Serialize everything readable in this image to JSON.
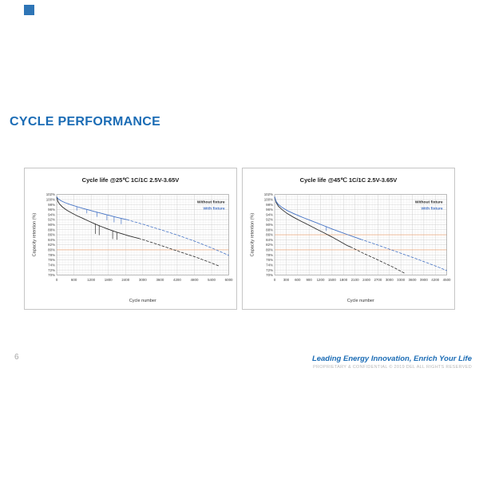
{
  "slide": {
    "title": "CYCLE PERFORMANCE",
    "page_number": "6",
    "footer_tagline": "Leading Energy Innovation, Enrich Your Life",
    "footer_legal": "PROPRIETARY & CONFIDENTIAL © 2019 DEL ALL RIGHTS RESERVED",
    "accent_color": "#1b6cb5",
    "logo_color": "#2e75b6"
  },
  "chart_data": [
    {
      "type": "line",
      "title": "Cycle life @25℃ 1C/1C 2.5V-3.65V",
      "xlabel": "Cycle number",
      "ylabel": "Capacity retention (%)",
      "xlim": [
        0,
        6000
      ],
      "ylim": [
        70,
        102
      ],
      "x_ticks": [
        0,
        600,
        1200,
        1800,
        2400,
        3000,
        3600,
        4200,
        4800,
        5400,
        6000
      ],
      "x_minor_step": 100,
      "y_tick_step": 2,
      "y_minor_step": 1,
      "y_tick_suffix": "%",
      "grid": true,
      "legend_position": "top-right",
      "reference_lines": [
        {
          "y": 80,
          "color": "#f2a26d"
        }
      ],
      "series": [
        {
          "name": "Without fixture",
          "color": "#2b2b2b",
          "solid_points": [
            [
              0,
              101
            ],
            [
              40,
              99.2
            ],
            [
              100,
              98.2
            ],
            [
              200,
              97.0
            ],
            [
              350,
              95.8
            ],
            [
              500,
              94.8
            ],
            [
              700,
              93.6
            ],
            [
              900,
              92.6
            ],
            [
              1100,
              91.5
            ],
            [
              1300,
              90.5
            ],
            [
              1500,
              89.5
            ],
            [
              1700,
              88.6
            ],
            [
              1900,
              87.8
            ],
            [
              2100,
              87.0
            ],
            [
              2300,
              86.3
            ],
            [
              2500,
              85.6
            ],
            [
              2700,
              85.0
            ],
            [
              2850,
              84.6
            ]
          ],
          "dashed_points": [
            [
              2850,
              84.6
            ],
            [
              3300,
              83.0
            ],
            [
              3800,
              81.1
            ],
            [
              4300,
              79.2
            ],
            [
              4800,
              77.3
            ],
            [
              5300,
              75.2
            ],
            [
              5650,
              73.6
            ]
          ],
          "spikes": [
            [
              1350,
              90.3,
              86.4
            ],
            [
              1480,
              89.7,
              85.9
            ],
            [
              1950,
              87.6,
              84.4
            ],
            [
              2100,
              87.0,
              84.1
            ]
          ]
        },
        {
          "name": "With fixture",
          "color": "#4472c4",
          "solid_points": [
            [
              0,
              101
            ],
            [
              60,
              100.2
            ],
            [
              150,
              99.5
            ],
            [
              300,
              98.7
            ],
            [
              500,
              97.9
            ],
            [
              700,
              97.2
            ],
            [
              900,
              96.5
            ],
            [
              1100,
              95.9
            ],
            [
              1300,
              95.3
            ],
            [
              1500,
              94.7
            ],
            [
              1700,
              94.1
            ],
            [
              1900,
              93.5
            ],
            [
              2100,
              92.9
            ],
            [
              2300,
              92.4
            ],
            [
              2450,
              92.0
            ]
          ],
          "dashed_points": [
            [
              2450,
              92.0
            ],
            [
              3000,
              90.2
            ],
            [
              3600,
              88.1
            ],
            [
              4200,
              85.9
            ],
            [
              4800,
              83.5
            ],
            [
              5400,
              80.8
            ],
            [
              6000,
              77.8
            ]
          ],
          "spikes": [
            [
              700,
              97.2,
              95.7
            ],
            [
              1050,
              96.1,
              94.6
            ],
            [
              1400,
              95.0,
              93.2
            ],
            [
              1750,
              93.9,
              91.8
            ],
            [
              2000,
              93.2,
              91.0
            ],
            [
              2250,
              92.5,
              90.3
            ]
          ]
        }
      ]
    },
    {
      "type": "line",
      "title": "Cycle life @45℃ 1C/1C 2.5V-3.65V",
      "xlabel": "Cycle number",
      "ylabel": "Capacity retention (%)",
      "xlim": [
        0,
        4500
      ],
      "ylim": [
        70,
        102
      ],
      "x_ticks": [
        0,
        300,
        600,
        900,
        1200,
        1500,
        1800,
        2100,
        2400,
        2700,
        3000,
        3300,
        3600,
        3900,
        4200,
        4500
      ],
      "x_minor_step": 75,
      "y_tick_step": 2,
      "y_minor_step": 1,
      "y_tick_suffix": "%",
      "grid": true,
      "legend_position": "top-right",
      "reference_lines": [
        {
          "y": 86,
          "color": "#f2a26d"
        },
        {
          "y": 80,
          "color": "#f2a26d"
        }
      ],
      "series": [
        {
          "name": "Without fixture",
          "color": "#2b2b2b",
          "solid_points": [
            [
              0,
              101
            ],
            [
              40,
              98.8
            ],
            [
              100,
              97.3
            ],
            [
              200,
              95.9
            ],
            [
              330,
              94.4
            ],
            [
              500,
              92.9
            ],
            [
              700,
              91.3
            ],
            [
              900,
              89.8
            ],
            [
              1100,
              88.2
            ],
            [
              1300,
              86.7
            ],
            [
              1500,
              85.1
            ],
            [
              1700,
              83.4
            ],
            [
              1900,
              81.7
            ],
            [
              1980,
              81.2
            ]
          ],
          "dashed_points": [
            [
              1980,
              81.2
            ],
            [
              2300,
              78.8
            ],
            [
              2700,
              76.0
            ],
            [
              3100,
              73.1
            ],
            [
              3400,
              70.7
            ]
          ],
          "spikes": []
        },
        {
          "name": "With fixture",
          "color": "#4472c4",
          "solid_points": [
            [
              0,
              101
            ],
            [
              40,
              99.2
            ],
            [
              100,
              98.0
            ],
            [
              200,
              96.8
            ],
            [
              330,
              95.6
            ],
            [
              500,
              94.4
            ],
            [
              700,
              93.1
            ],
            [
              900,
              91.9
            ],
            [
              1100,
              90.7
            ],
            [
              1300,
              89.5
            ],
            [
              1500,
              88.3
            ],
            [
              1700,
              87.2
            ],
            [
              1900,
              86.1
            ],
            [
              2100,
              85.0
            ],
            [
              2250,
              84.2
            ]
          ],
          "dashed_points": [
            [
              2250,
              84.2
            ],
            [
              2700,
              81.9
            ],
            [
              3200,
              79.2
            ],
            [
              3700,
              76.5
            ],
            [
              4200,
              73.6
            ],
            [
              4500,
              71.8
            ]
          ],
          "spikes": [
            [
              1350,
              89.3,
              87.6
            ]
          ]
        }
      ]
    }
  ]
}
